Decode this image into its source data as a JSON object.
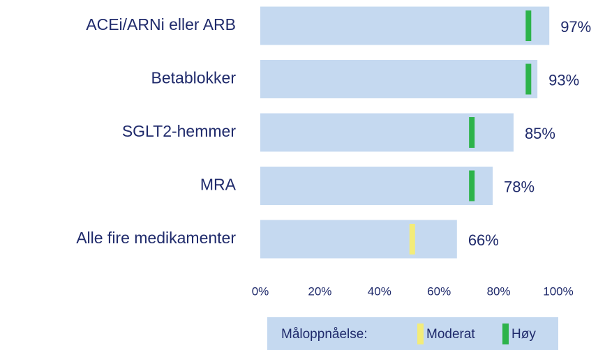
{
  "chart_data": {
    "type": "bar",
    "orientation": "horizontal",
    "categories": [
      "ACEi/ARNi eller ARB",
      "Betablokker",
      "SGLT2-hemmer",
      "MRA",
      "Alle fire medikamenter"
    ],
    "values": [
      97,
      93,
      85,
      78,
      66
    ],
    "value_labels": [
      "97%",
      "93%",
      "85%",
      "78%",
      "66%"
    ],
    "color": "#c5d9f0",
    "targets": [
      90,
      90,
      71,
      71,
      51
    ],
    "target_colors": [
      "#2db34a",
      "#2db34a",
      "#2db34a",
      "#2db34a",
      "#f3ec79"
    ],
    "xlim": [
      0,
      100
    ],
    "xticks": [
      {
        "value": 0,
        "label": "0%"
      },
      {
        "value": 20,
        "label": "20%"
      },
      {
        "value": 40,
        "label": "40%"
      },
      {
        "value": 60,
        "label": "60%"
      },
      {
        "value": 80,
        "label": "80%"
      },
      {
        "value": 100,
        "label": "100%"
      }
    ],
    "legend": {
      "title": "Måloppnåelse:",
      "position": "bottom",
      "entries": [
        {
          "name": "Moderat",
          "color": "#f3ec79"
        },
        {
          "name": "Høy",
          "color": "#2db34a"
        }
      ]
    }
  }
}
